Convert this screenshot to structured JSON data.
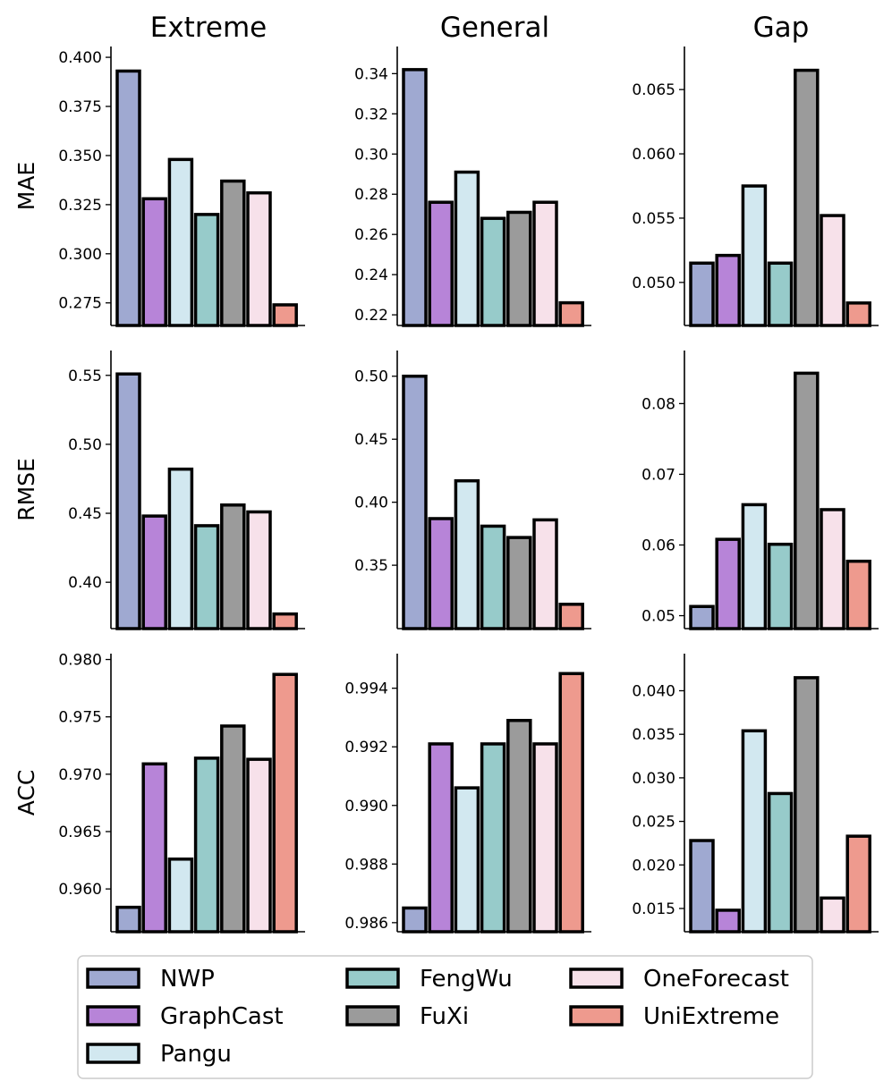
{
  "models": [
    "NWP",
    "GraphCast",
    "Pangu",
    "FengWu",
    "FuXi",
    "OneForecast",
    "UniExtreme"
  ],
  "colors": {
    "NWP": "#9FA9D1",
    "GraphCast": "#B784D8",
    "Pangu": "#D2E8F0",
    "FengWu": "#97CBCA",
    "FuXi": "#9B9B9B",
    "OneForecast": "#F7E1EA",
    "UniExtreme": "#EE9A8E"
  },
  "column_titles": [
    "Extreme",
    "General",
    "Gap"
  ],
  "row_labels": [
    "MAE",
    "RMSE",
    "ACC"
  ],
  "chart_data": [
    {
      "type": "bar",
      "row": "MAE",
      "column": "Extreme",
      "ylim": [
        0.2635,
        0.4055
      ],
      "yticks": [
        "0.275",
        "0.300",
        "0.325",
        "0.350",
        "0.375",
        "0.400"
      ],
      "values": [
        0.393,
        0.328,
        0.348,
        0.32,
        0.337,
        0.331,
        0.274
      ]
    },
    {
      "type": "bar",
      "row": "MAE",
      "column": "General",
      "ylim": [
        0.2147,
        0.3535
      ],
      "yticks": [
        "0.22",
        "0.24",
        "0.26",
        "0.28",
        "0.30",
        "0.32",
        "0.34"
      ],
      "values": [
        0.342,
        0.276,
        0.291,
        0.268,
        0.271,
        0.276,
        0.226
      ]
    },
    {
      "type": "bar",
      "row": "MAE",
      "column": "Gap",
      "ylim": [
        0.04665,
        0.06835
      ],
      "yticks": [
        "0.050",
        "0.055",
        "0.060",
        "0.065"
      ],
      "values": [
        0.0515,
        0.0521,
        0.0575,
        0.0515,
        0.0665,
        0.0552,
        0.0484
      ]
    },
    {
      "type": "bar",
      "row": "RMSE",
      "column": "Extreme",
      "ylim": [
        0.3664,
        0.568
      ],
      "yticks": [
        "0.40",
        "0.45",
        "0.50",
        "0.55"
      ],
      "values": [
        0.551,
        0.448,
        0.482,
        0.441,
        0.456,
        0.451,
        0.377
      ]
    },
    {
      "type": "bar",
      "row": "RMSE",
      "column": "General",
      "ylim": [
        0.2997,
        0.5204
      ],
      "yticks": [
        "0.35",
        "0.40",
        "0.45",
        "0.50"
      ],
      "values": [
        0.5,
        0.387,
        0.417,
        0.381,
        0.372,
        0.386,
        0.319
      ]
    },
    {
      "type": "bar",
      "row": "RMSE",
      "column": "Gap",
      "ylim": [
        0.04817,
        0.08751
      ],
      "yticks": [
        "0.05",
        "0.06",
        "0.07",
        "0.08"
      ],
      "values": [
        0.0513,
        0.0608,
        0.0657,
        0.0601,
        0.0843,
        0.065,
        0.0577
      ]
    },
    {
      "type": "bar",
      "row": "ACC",
      "column": "Extreme",
      "ylim": [
        0.95627,
        0.98051
      ],
      "yticks": [
        "0.960",
        "0.965",
        "0.970",
        "0.975",
        "0.980"
      ],
      "values": [
        0.9584,
        0.9709,
        0.9626,
        0.9714,
        0.9742,
        0.9713,
        0.9787
      ]
    },
    {
      "type": "bar",
      "row": "ACC",
      "column": "General",
      "ylim": [
        0.98569,
        0.99518
      ],
      "yticks": [
        "0.986",
        "0.988",
        "0.990",
        "0.992",
        "0.994"
      ],
      "values": [
        0.9865,
        0.9921,
        0.9906,
        0.9921,
        0.9929,
        0.9921,
        0.9945
      ]
    },
    {
      "type": "bar",
      "row": "ACC",
      "column": "Gap",
      "ylim": [
        0.01233,
        0.04426
      ],
      "yticks": [
        "0.015",
        "0.020",
        "0.025",
        "0.030",
        "0.035",
        "0.040"
      ],
      "values": [
        0.0228,
        0.0148,
        0.0354,
        0.0282,
        0.0415,
        0.0162,
        0.0233
      ]
    }
  ]
}
